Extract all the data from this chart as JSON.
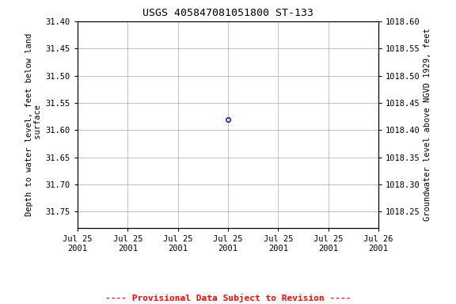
{
  "title": "USGS 405847081051800 ST-133",
  "point_x_hours": 12,
  "point_y": 31.58,
  "ylim_left_top": 31.4,
  "ylim_left_bottom": 31.78,
  "ylim_right_top": 1018.6,
  "ylim_right_bottom": 1018.22,
  "left_yticks": [
    31.4,
    31.45,
    31.5,
    31.55,
    31.6,
    31.65,
    31.7,
    31.75
  ],
  "right_yticks": [
    1018.6,
    1018.55,
    1018.5,
    1018.45,
    1018.4,
    1018.35,
    1018.3,
    1018.25
  ],
  "ylabel_left": "Depth to water level, feet below land\n surface",
  "ylabel_right": "Groundwater level above NGVD 1929, feet",
  "provisional_text": "---- Provisional Data Subject to Revision ----",
  "point_color": "#0000cc",
  "grid_color": "#aaaaaa",
  "background_color": "#ffffff",
  "title_fontsize": 9.5,
  "axis_label_fontsize": 7.5,
  "tick_fontsize": 7.5,
  "provisional_fontsize": 8,
  "xtick_hours": [
    0,
    4,
    8,
    12,
    16,
    20,
    24
  ],
  "x_labels": [
    "Jul 25\n2001",
    "Jul 25\n2001",
    "Jul 25\n2001",
    "Jul 25\n2001",
    "Jul 25\n2001",
    "Jul 25\n2001",
    "Jul 26\n2001"
  ]
}
